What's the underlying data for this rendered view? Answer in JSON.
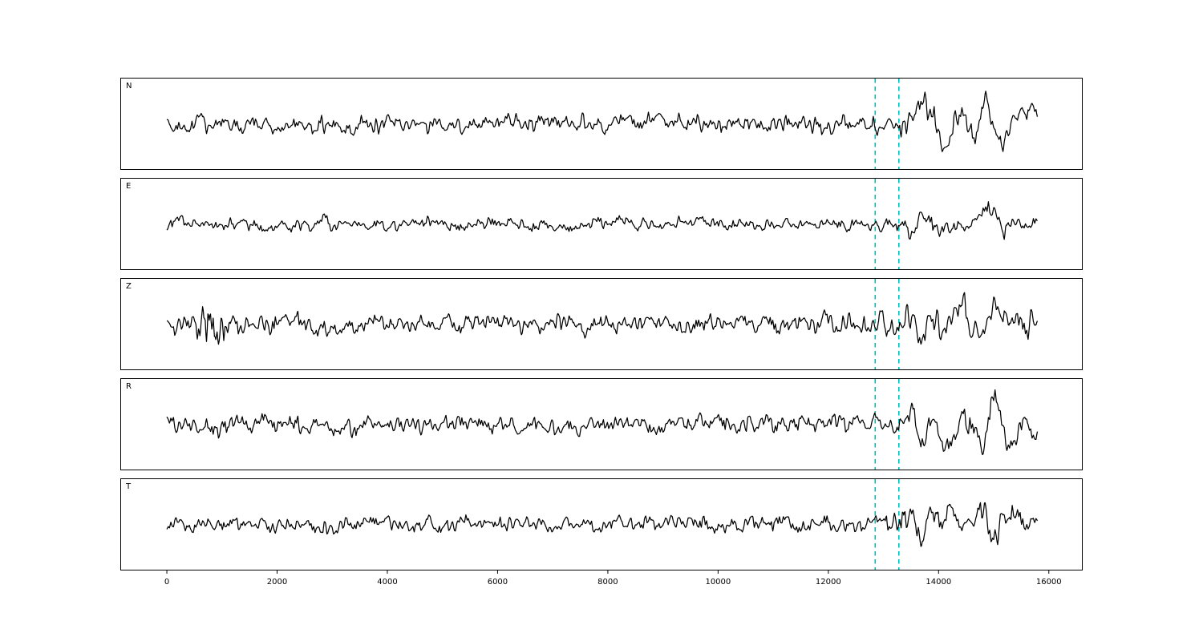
{
  "chart_data": {
    "type": "line",
    "title": "",
    "xlabel": "",
    "ylabel": "",
    "description": "Five-channel seismogram waveform display (channels N, E, Z, R, T) with two cyan dashed phase-pick lines",
    "panels": [
      {
        "label": "N",
        "base_amp": 12,
        "event_amp": 34
      },
      {
        "label": "E",
        "base_amp": 8.5,
        "event_amp": 25
      },
      {
        "label": "Z",
        "base_amp": 13,
        "event_amp": 20,
        "burst": {
          "center": 850,
          "sigma": 260,
          "amp": 30
        }
      },
      {
        "label": "R",
        "base_amp": 12,
        "event_amp": 34
      },
      {
        "label": "T",
        "base_amp": 11,
        "event_amp": 30
      }
    ],
    "x_start": 0,
    "x_end": 15800,
    "xlim": [
      -830,
      16600
    ],
    "xticks": [
      0,
      2000,
      4000,
      6000,
      8000,
      10000,
      12000,
      14000,
      16000
    ],
    "pick_lines": {
      "values": [
        12850,
        13280
      ],
      "color": "#00bfbf",
      "style": "dashed"
    },
    "line_color": "#000000",
    "background": "#ffffff",
    "grid": false,
    "legend": null
  }
}
